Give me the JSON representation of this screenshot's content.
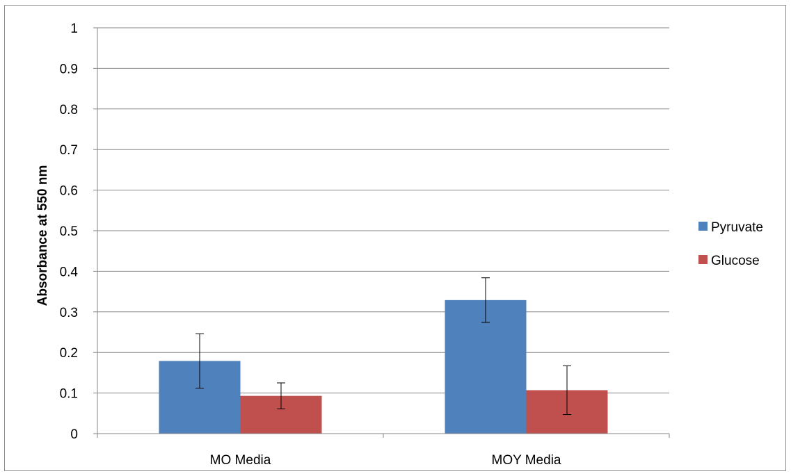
{
  "chart_data": {
    "type": "bar",
    "title": "",
    "xlabel": "",
    "ylabel": "Absorbance at 550 nm",
    "categories": [
      "MO Media",
      "MOY Media"
    ],
    "series": [
      {
        "name": "Pyruvate",
        "color": "#4f81bd",
        "values": [
          0.179,
          0.329
        ],
        "error": [
          0.067,
          0.055
        ]
      },
      {
        "name": "Glucose",
        "color": "#c0504d",
        "values": [
          0.093,
          0.107
        ],
        "error": [
          0.032,
          0.06
        ]
      }
    ],
    "ylim": [
      0,
      1
    ],
    "yticks": [
      0,
      0.1,
      0.2,
      0.3,
      0.4,
      0.5,
      0.6,
      0.7,
      0.8,
      0.9,
      1
    ],
    "ytick_labels": [
      "0",
      "0.1",
      "0.2",
      "0.3",
      "0.4",
      "0.5",
      "0.6",
      "0.7",
      "0.8",
      "0.9",
      "1"
    ],
    "grid": true,
    "legend_position": "right"
  }
}
